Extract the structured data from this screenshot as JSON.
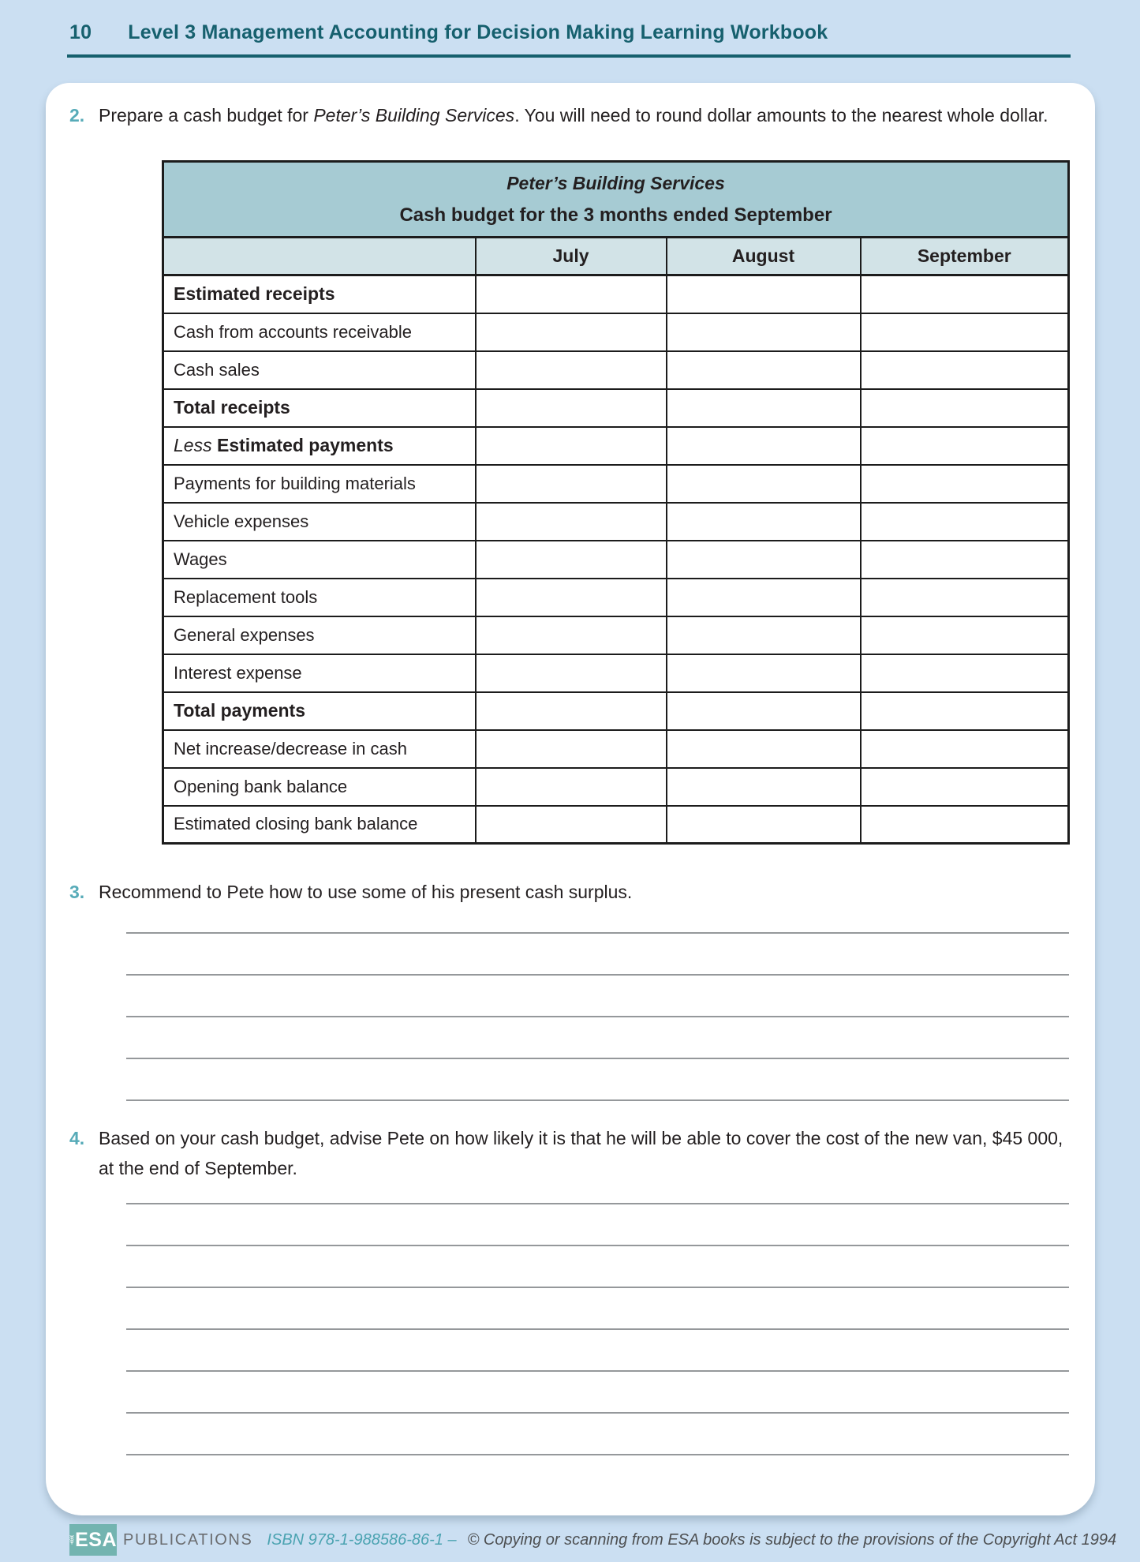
{
  "header": {
    "page_number": "10",
    "title": "Level 3 Management Accounting for Decision Making Learning Workbook"
  },
  "questions": [
    {
      "id": "q2",
      "number": "2.",
      "text_parts": {
        "before": "Prepare a cash budget for ",
        "italic": "Peter’s Building Services",
        "after": ". You will need to round dollar amounts to the nearest whole dollar."
      }
    },
    {
      "id": "q3",
      "number": "3.",
      "text": "Recommend to Pete how to use some of his present cash surplus.",
      "answer_lines": 5
    },
    {
      "id": "q4",
      "number": "4.",
      "text": "Based on your cash budget, advise Pete on how likely it is that he will be able to cover the cost of the new van, $45 000, at the end of September.",
      "answer_lines": 7
    }
  ],
  "table": {
    "title": "Peter’s Building Services",
    "subtitle": "Cash budget for the 3 months ended September",
    "columns": [
      "July",
      "August",
      "September"
    ],
    "rows": [
      {
        "label": "Estimated receipts",
        "bold": true
      },
      {
        "label": "Cash from accounts receivable",
        "bold": false
      },
      {
        "label": "Cash sales",
        "bold": false
      },
      {
        "label": "Total receipts",
        "bold": true
      },
      {
        "prefix": "Less ",
        "label": "Estimated payments",
        "bold": true
      },
      {
        "label": "Payments for building materials",
        "bold": false
      },
      {
        "label": "Vehicle expenses",
        "bold": false
      },
      {
        "label": "Wages",
        "bold": false
      },
      {
        "label": "Replacement tools",
        "bold": false
      },
      {
        "label": "General expenses",
        "bold": false
      },
      {
        "label": "Interest expense",
        "bold": false
      },
      {
        "label": "Total payments",
        "bold": true
      },
      {
        "label": "Net increase/decrease in cash",
        "bold": false
      },
      {
        "label": "Opening bank balance",
        "bold": false
      },
      {
        "label": "Estimated closing bank balance",
        "bold": false
      }
    ],
    "value_cells_empty": true
  },
  "footer": {
    "logo_text": "ESA",
    "publisher": "PUBLICATIONS",
    "isbn": "ISBN 978-1-988586-86-1 –",
    "copyright": "© Copying or scanning from ESA books is subject to the provisions of the Copyright Act 1994"
  },
  "colors": {
    "page_background": "#cbdff2",
    "header_teal": "#16606e",
    "question_number_teal": "#57abb8",
    "table_title_bg": "#a6cbd3",
    "table_month_bg": "#d2e3e7",
    "table_border": "#1c1c1c",
    "answer_line_gray": "#95989b",
    "esa_logo_teal": "#73b4b0",
    "isbn_teal": "#4ba3b1"
  }
}
